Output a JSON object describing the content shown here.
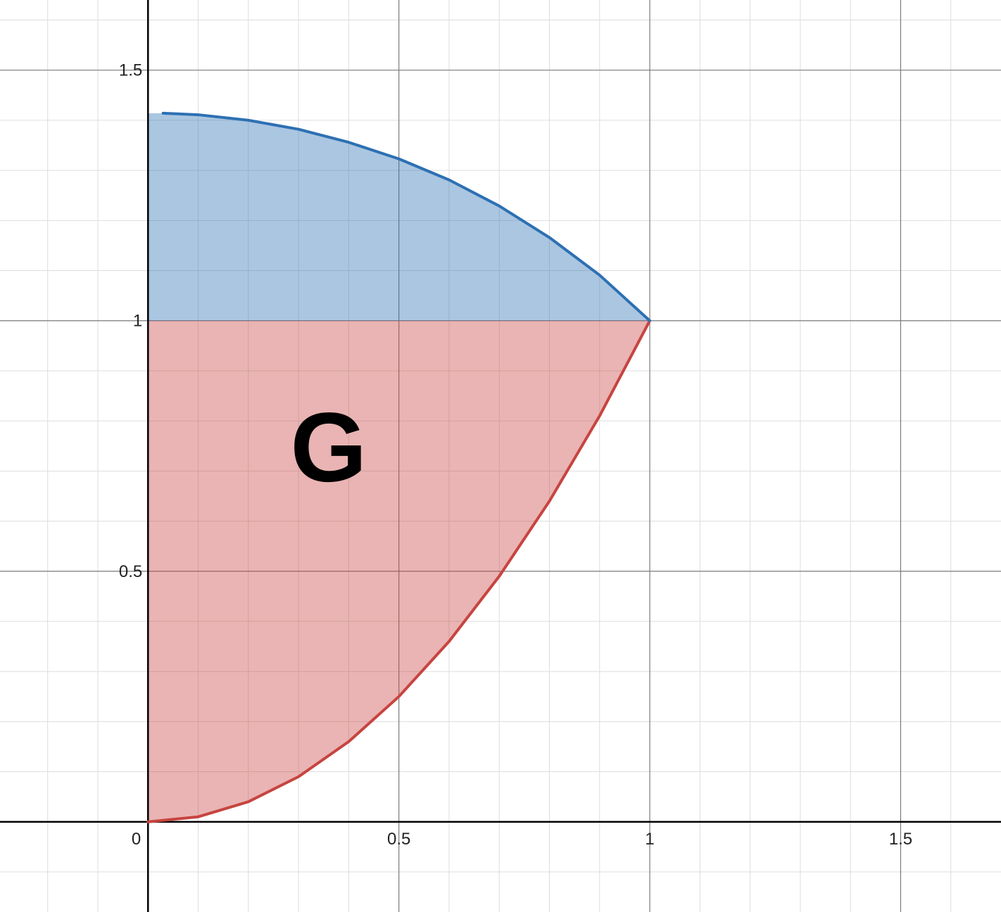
{
  "chart_data": {
    "type": "area",
    "title": "",
    "xlabel": "",
    "ylabel": "",
    "xlim": [
      -0.295,
      1.7
    ],
    "ylim": [
      -0.18,
      1.64
    ],
    "x_ticks": [
      {
        "value": 0.5,
        "label": "0.5"
      },
      {
        "value": 1,
        "label": "1"
      },
      {
        "value": 1.5,
        "label": "1.5"
      }
    ],
    "y_ticks": [
      {
        "value": 0.5,
        "label": "0.5"
      },
      {
        "value": 1,
        "label": "1"
      },
      {
        "value": 1.5,
        "label": "1.5"
      }
    ],
    "origin_label": "0",
    "grid": true,
    "minor_grid_step": 0.1,
    "major_grid_step": 0.5,
    "series": [
      {
        "x": [
          0,
          0.1,
          0.2,
          0.3,
          0.4,
          0.5,
          0.6,
          0.7,
          0.8,
          0.9,
          1.0
        ],
        "y": [
          0,
          0.01,
          0.04,
          0.09,
          0.16,
          0.25,
          0.36,
          0.49,
          0.64,
          0.81,
          1.0
        ],
        "color": "#c74440"
      },
      {
        "x": [
          0.03,
          0.1,
          0.2,
          0.3,
          0.4,
          0.5,
          0.6,
          0.7,
          0.8,
          0.9,
          1.0
        ],
        "y": [
          1.414,
          1.411,
          1.4,
          1.382,
          1.356,
          1.323,
          1.281,
          1.229,
          1.166,
          1.091,
          1.0
        ],
        "color": "#2d70b3"
      }
    ],
    "regions": [
      {
        "between": "lower curve and y = 1, x from 0 to 1",
        "color": "#c74440",
        "opacity": 0.4
      },
      {
        "between": "y = 1 and upper curve, x from 0 to 1",
        "color": "#2d70b3",
        "opacity": 0.4
      }
    ],
    "annotations": [
      {
        "text": "G",
        "x": 0.36,
        "y": 0.75
      }
    ]
  }
}
